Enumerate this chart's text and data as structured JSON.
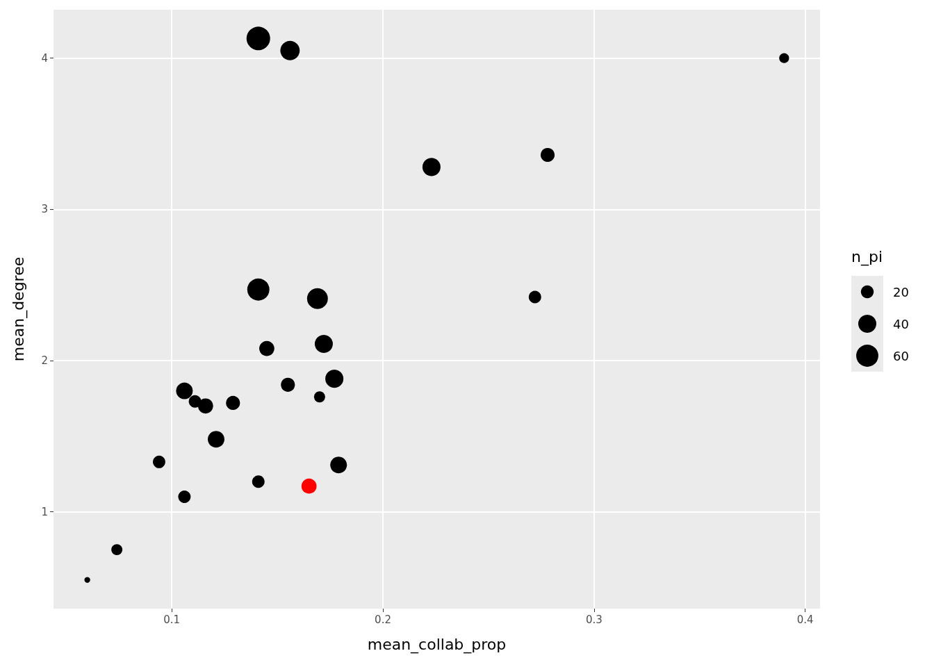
{
  "chart_data": {
    "type": "bubble",
    "xlabel": "mean_collab_prop",
    "ylabel": "mean_degree",
    "legend_title": "n_pi",
    "grid": true,
    "marker": "circle",
    "xlim": [
      0.044,
      0.407
    ],
    "ylim": [
      0.36,
      4.32
    ],
    "xticks": [
      0.1,
      0.2,
      0.3,
      0.4
    ],
    "yticks": [
      1,
      2,
      3,
      4
    ],
    "size_legend": [
      20,
      40,
      60
    ],
    "x": [
      0.141,
      0.156,
      0.39,
      0.223,
      0.278,
      0.141,
      0.169,
      0.272,
      0.172,
      0.145,
      0.177,
      0.155,
      0.17,
      0.106,
      0.111,
      0.116,
      0.129,
      0.121,
      0.094,
      0.179,
      0.141,
      0.165,
      0.106,
      0.074,
      0.06
    ],
    "values": [
      4.13,
      4.05,
      4.0,
      3.28,
      3.36,
      2.47,
      2.41,
      2.42,
      2.11,
      2.08,
      1.88,
      1.84,
      1.76,
      1.8,
      1.73,
      1.7,
      1.72,
      1.48,
      1.33,
      1.31,
      1.2,
      1.17,
      1.1,
      0.75,
      0.55
    ],
    "sizes": [
      68,
      46,
      12,
      40,
      24,
      60,
      53,
      19,
      40,
      28,
      40,
      24,
      15,
      34,
      19,
      28,
      24,
      34,
      19,
      34,
      19,
      28,
      19,
      15,
      4
    ],
    "colors": [
      "#000000",
      "#000000",
      "#000000",
      "#000000",
      "#000000",
      "#000000",
      "#000000",
      "#000000",
      "#000000",
      "#000000",
      "#000000",
      "#000000",
      "#000000",
      "#000000",
      "#000000",
      "#000000",
      "#000000",
      "#000000",
      "#000000",
      "#000000",
      "#000000",
      "#ff0000",
      "#000000",
      "#000000",
      "#000000"
    ]
  }
}
